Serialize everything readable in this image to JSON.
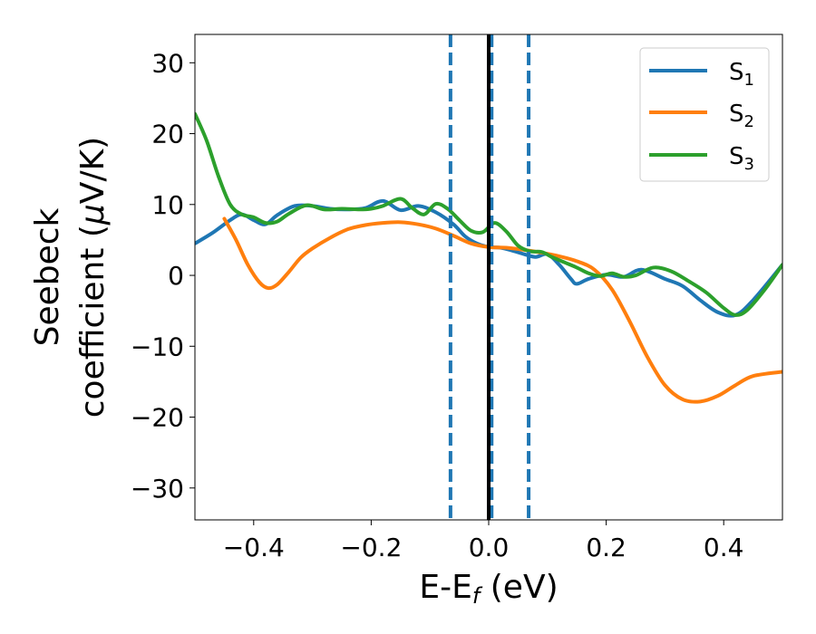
{
  "chart_data": {
    "type": "line",
    "xlabel": "E-E",
    "xlabel_sub": "f",
    "xlabel_unit": " (eV)",
    "ylabel_line1": "Seebeck",
    "ylabel_line2_prefix": "coefficient  (",
    "ylabel_mu": "μ",
    "ylabel_line2_suffix": "V/K)",
    "xlim": [
      -0.5,
      0.5
    ],
    "ylim": [
      -34.5,
      34
    ],
    "x_ticks": [
      -0.4,
      -0.2,
      0.0,
      0.2,
      0.4
    ],
    "x_tick_labels": [
      "−0.4",
      "−0.2",
      "0.0",
      "0.2",
      "0.4"
    ],
    "y_ticks": [
      30,
      20,
      10,
      0,
      -10,
      -20,
      -30
    ],
    "y_tick_labels": [
      "30",
      "20",
      "10",
      "0",
      "−10",
      "−20",
      "−30"
    ],
    "grid": false,
    "legend_placement": "top-right",
    "vertical_lines": [
      {
        "x": -0.065,
        "style": "dashed",
        "color": "#1f77b4"
      },
      {
        "x": 0.005,
        "style": "dashed",
        "color": "#1f77b4"
      },
      {
        "x": 0.068,
        "style": "dashed",
        "color": "#1f77b4"
      },
      {
        "x": 0.0,
        "style": "solid",
        "color": "#000000"
      }
    ],
    "series": [
      {
        "name": "S",
        "sub": "1",
        "color": "#1f77b4",
        "x": [
          -0.5,
          -0.47,
          -0.44,
          -0.42,
          -0.4,
          -0.38,
          -0.36,
          -0.33,
          -0.3,
          -0.27,
          -0.24,
          -0.21,
          -0.18,
          -0.15,
          -0.12,
          -0.09,
          -0.06,
          -0.04,
          -0.02,
          0.0,
          0.02,
          0.04,
          0.06,
          0.08,
          0.1,
          0.12,
          0.14,
          0.15,
          0.17,
          0.2,
          0.23,
          0.26,
          0.3,
          0.33,
          0.36,
          0.39,
          0.42,
          0.45,
          0.5
        ],
        "y": [
          4.5,
          6.0,
          7.8,
          8.6,
          7.8,
          7.2,
          8.5,
          9.8,
          9.8,
          9.4,
          9.3,
          9.5,
          10.5,
          9.2,
          9.8,
          8.9,
          7.2,
          5.5,
          4.5,
          4.0,
          3.9,
          3.5,
          3.0,
          2.6,
          3.0,
          1.5,
          -0.5,
          -1.2,
          -0.5,
          0.1,
          -0.2,
          0.8,
          -0.5,
          -1.5,
          -3.5,
          -5.2,
          -5.6,
          -3.5,
          1.5
        ]
      },
      {
        "name": "S",
        "sub": "2",
        "color": "#ff7f0e",
        "x": [
          -0.45,
          -0.43,
          -0.41,
          -0.39,
          -0.375,
          -0.36,
          -0.34,
          -0.32,
          -0.3,
          -0.27,
          -0.24,
          -0.21,
          -0.18,
          -0.15,
          -0.12,
          -0.09,
          -0.06,
          -0.03,
          0.0,
          0.03,
          0.06,
          0.09,
          0.12,
          0.15,
          0.18,
          0.21,
          0.24,
          0.27,
          0.3,
          0.33,
          0.36,
          0.39,
          0.42,
          0.45,
          0.5
        ],
        "y": [
          8.0,
          5.0,
          1.5,
          -1.0,
          -1.8,
          -1.3,
          0.5,
          2.5,
          3.8,
          5.3,
          6.5,
          7.1,
          7.4,
          7.5,
          7.2,
          6.6,
          5.6,
          4.5,
          4.0,
          3.9,
          3.6,
          3.2,
          2.7,
          2.0,
          0.8,
          -2.0,
          -6.5,
          -11.5,
          -15.5,
          -17.5,
          -17.8,
          -17.0,
          -15.5,
          -14.2,
          -13.6
        ]
      },
      {
        "name": "S",
        "sub": "3",
        "color": "#2ca02c",
        "x": [
          -0.5,
          -0.48,
          -0.46,
          -0.44,
          -0.42,
          -0.4,
          -0.38,
          -0.36,
          -0.34,
          -0.31,
          -0.28,
          -0.25,
          -0.22,
          -0.2,
          -0.18,
          -0.15,
          -0.13,
          -0.11,
          -0.09,
          -0.07,
          -0.05,
          -0.03,
          -0.01,
          0.01,
          0.03,
          0.05,
          0.07,
          0.09,
          0.11,
          0.13,
          0.15,
          0.17,
          0.19,
          0.21,
          0.23,
          0.25,
          0.28,
          0.31,
          0.34,
          0.37,
          0.4,
          0.42,
          0.44,
          0.47,
          0.5
        ],
        "y": [
          22.8,
          19.0,
          14.0,
          10.0,
          8.6,
          8.2,
          7.4,
          7.6,
          8.7,
          9.9,
          9.3,
          9.4,
          9.3,
          9.4,
          9.8,
          10.8,
          9.5,
          8.6,
          10.1,
          9.4,
          7.8,
          6.3,
          6.1,
          7.4,
          6.2,
          4.2,
          3.4,
          3.3,
          2.5,
          1.8,
          1.1,
          0.3,
          -0.1,
          0.3,
          -0.2,
          0.0,
          1.1,
          0.6,
          -0.8,
          -2.4,
          -4.6,
          -5.6,
          -4.9,
          -2.0,
          1.5
        ]
      }
    ]
  }
}
